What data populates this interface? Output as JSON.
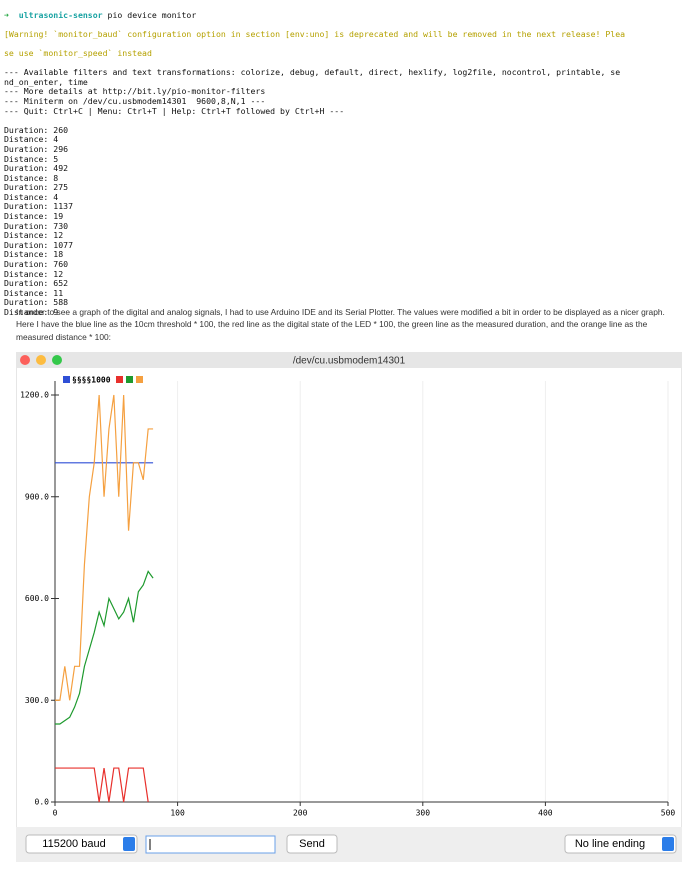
{
  "terminal": {
    "prompt_dir": "ultrasonic-sensor",
    "command": "pio device monitor",
    "warning": [
      "[Warning! `monitor_baud` configuration option in section [env:uno] is deprecated and will be removed in the next release! Plea",
      "se use `monitor_speed` instead"
    ],
    "info": [
      "--- Available filters and text transformations: colorize, debug, default, direct, hexlify, log2file, nocontrol, printable, se",
      "nd_on_enter, time",
      "--- More details at http://bit.ly/pio-monitor-filters",
      "--- Miniterm on /dev/cu.usbmodem14301  9600,8,N,1 ---",
      "--- Quit: Ctrl+C | Menu: Ctrl+T | Help: Ctrl+T followed by Ctrl+H ---"
    ],
    "readings": [
      "Duration: 260",
      "Distance: 4",
      "Duration: 296",
      "Distance: 5",
      "Duration: 492",
      "Distance: 8",
      "Duration: 275",
      "Distance: 4",
      "Duration: 1137",
      "Distance: 19",
      "Duration: 730",
      "Distance: 12",
      "Duration: 1077",
      "Distance: 18",
      "Duration: 760",
      "Distance: 12",
      "Duration: 652",
      "Distance: 11",
      "Duration: 588",
      "Distance: 9"
    ]
  },
  "paragraph": "In order to see a graph of the digital and analog signals, I had to use Arduino IDE and its Serial Plotter. The values were modified a bit in order to be displayed as a nicer graph. Here I have the blue line as the 10cm threshold * 100, the red line as the digital state of the LED * 100, the green line as the measured duration, and the orange line as the measured distance * 100:",
  "chart_data": {
    "type": "line",
    "title": "/dev/cu.usbmodem14301",
    "legend_label": "§§§§1000",
    "x": [
      0,
      4,
      8,
      12,
      16,
      20,
      24,
      28,
      32,
      36,
      40,
      44,
      48,
      52,
      56,
      60,
      64,
      68,
      72,
      76,
      80
    ],
    "series": [
      {
        "color": "#2f4fd6",
        "values": [
          1000,
          1000,
          1000,
          1000,
          1000,
          1000,
          1000,
          1000,
          1000,
          1000,
          1000,
          1000,
          1000,
          1000,
          1000,
          1000,
          1000,
          1000,
          1000,
          1000,
          1000
        ]
      },
      {
        "color": "#e8302c",
        "values": [
          100,
          100,
          100,
          100,
          100,
          100,
          100,
          100,
          100,
          0,
          100,
          0,
          100,
          100,
          0,
          100,
          100,
          100,
          100,
          0,
          null
        ]
      },
      {
        "color": "#1e9a2e",
        "values": [
          230,
          230,
          240,
          250,
          280,
          320,
          400,
          450,
          500,
          560,
          520,
          600,
          570,
          540,
          560,
          600,
          530,
          620,
          640,
          680,
          660
        ]
      },
      {
        "color": "#f5a040",
        "values": [
          300,
          300,
          400,
          300,
          400,
          400,
          700,
          900,
          1000,
          1200,
          900,
          1100,
          1200,
          900,
          1200,
          800,
          1000,
          1000,
          950,
          1100,
          1100
        ]
      }
    ],
    "xlim": [
      0,
      500
    ],
    "xticks": [
      0,
      100,
      200,
      300,
      400,
      500
    ],
    "ylim": [
      0,
      1200
    ],
    "yticks": [
      {
        "value": 0,
        "label": "0.0"
      },
      {
        "value": 300,
        "label": "300.0"
      },
      {
        "value": 600,
        "label": "600.0"
      },
      {
        "value": 900,
        "label": "900.0"
      },
      {
        "value": 1200,
        "label": "1200.0"
      }
    ],
    "grid": true
  },
  "controls": {
    "baud": "115200 baud",
    "send": "Send",
    "line_ending": "No line ending"
  }
}
